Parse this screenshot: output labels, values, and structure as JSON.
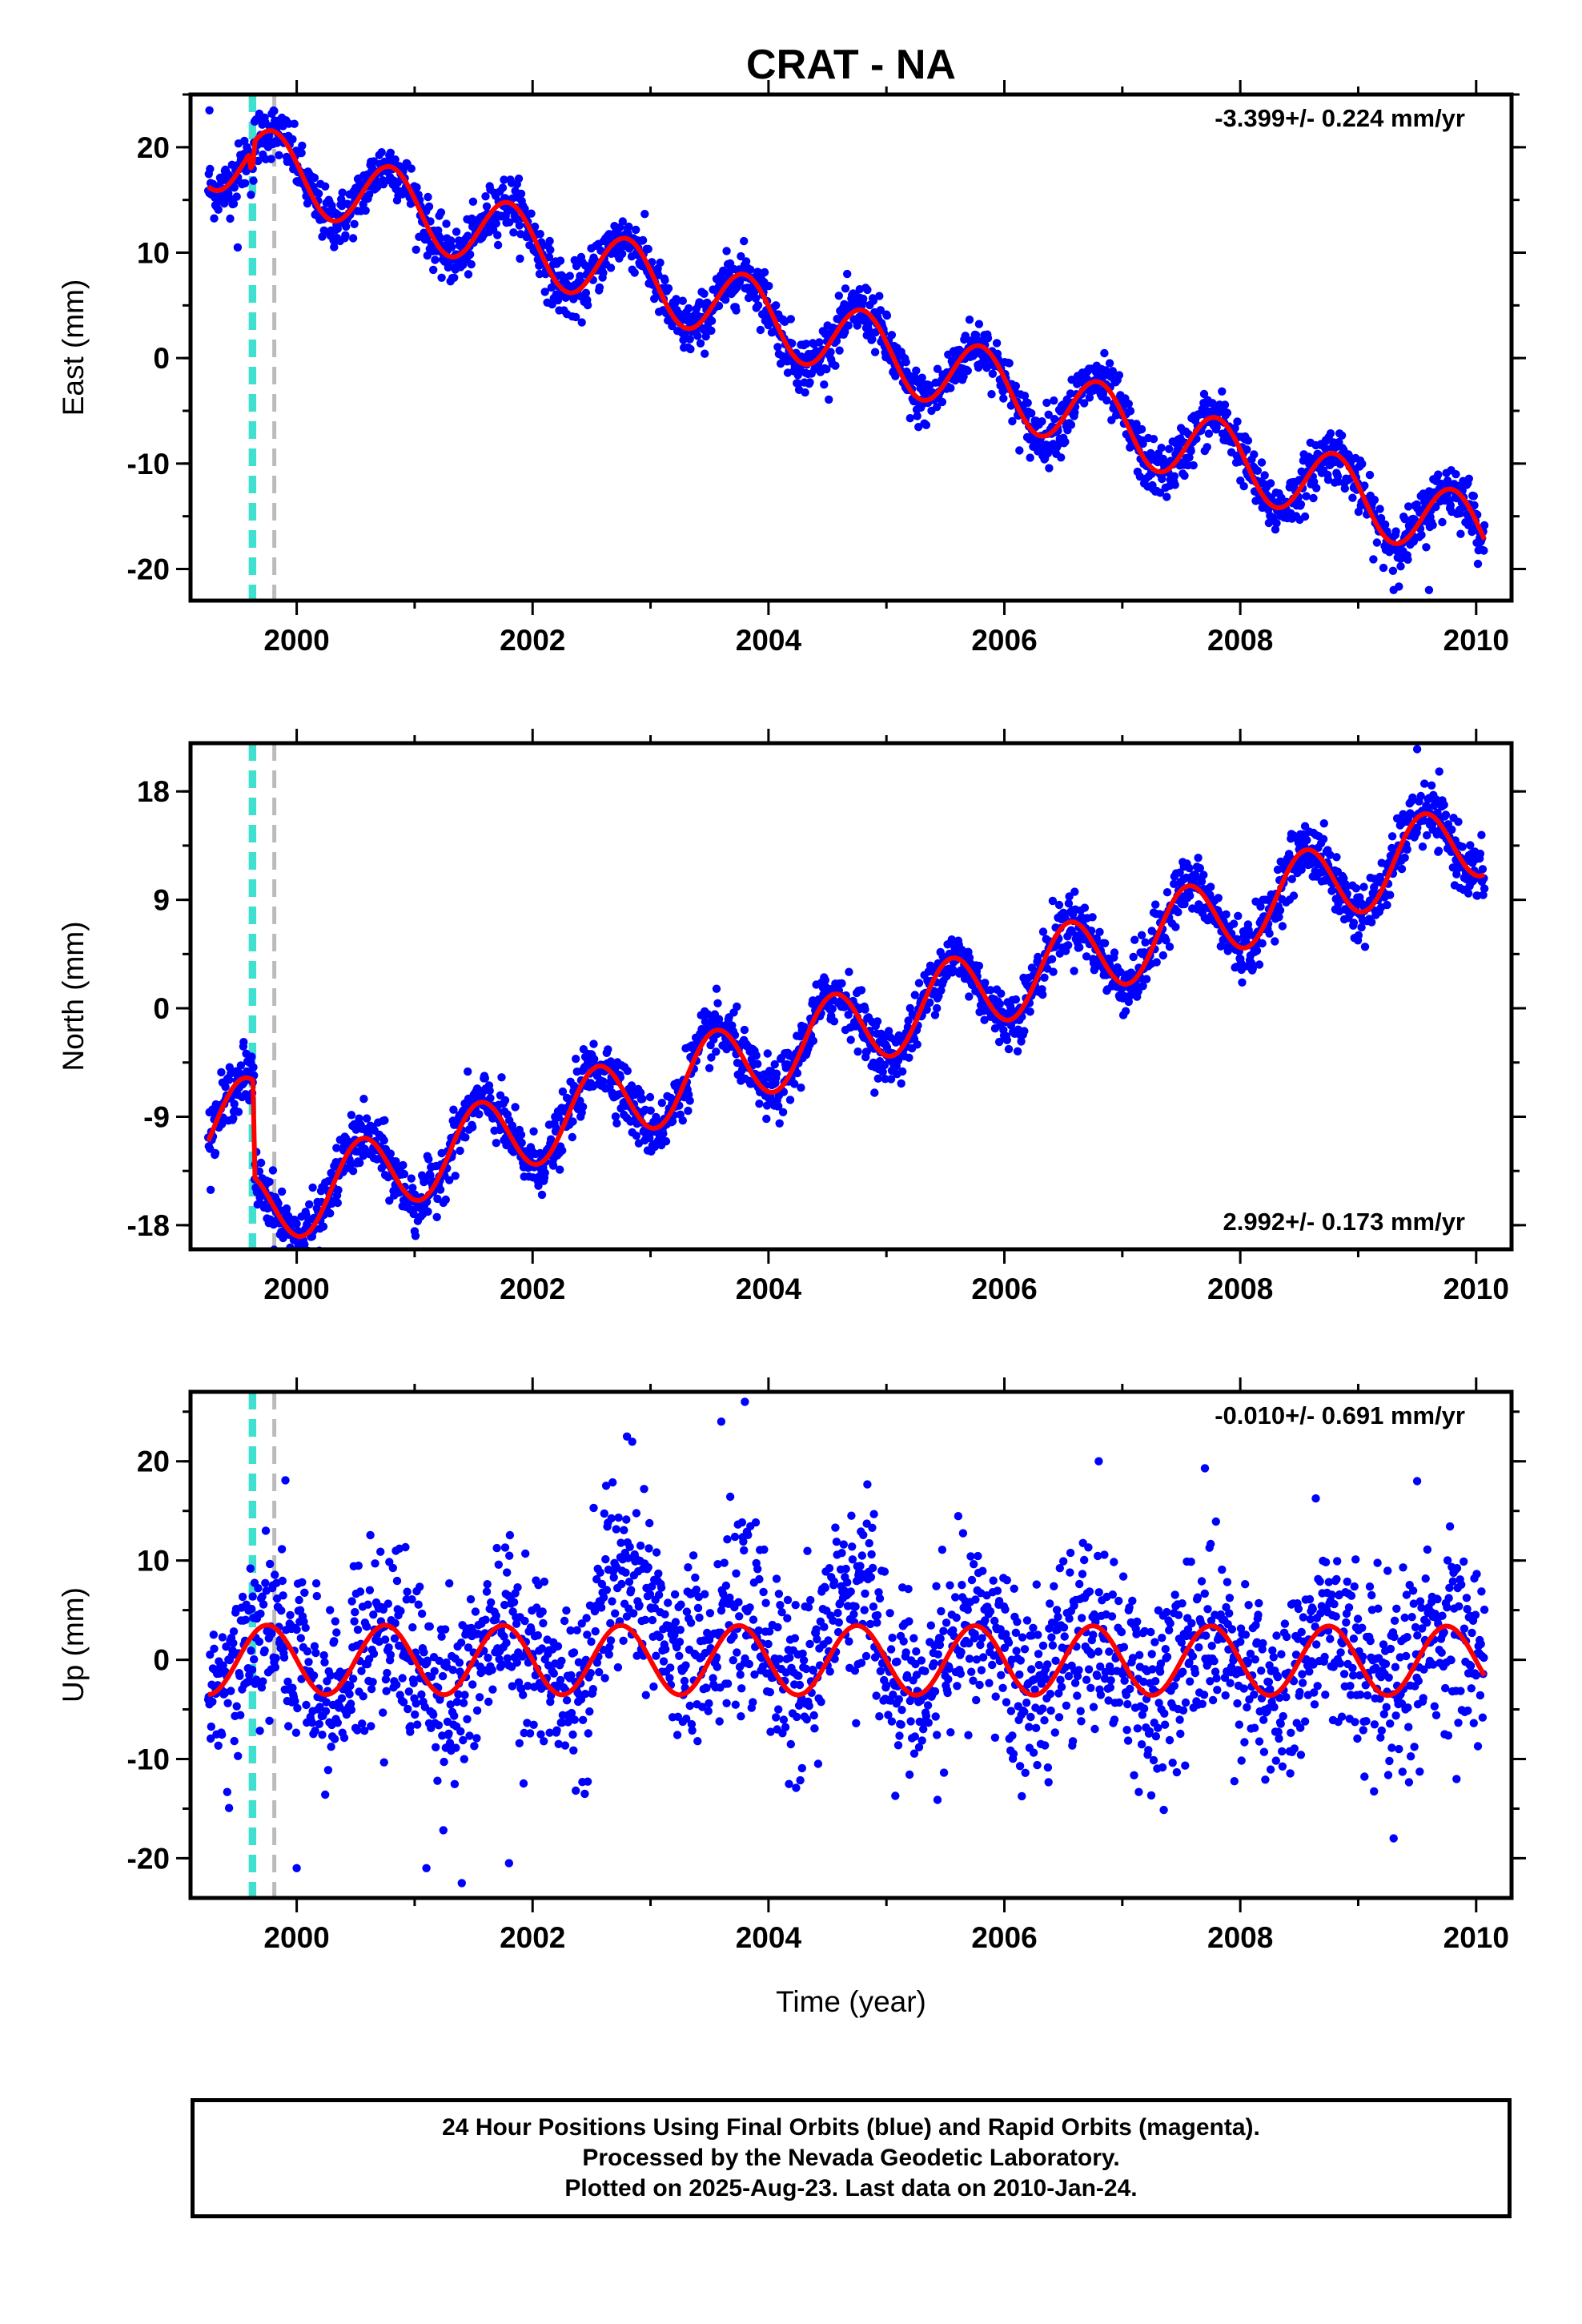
{
  "chart_data": {
    "title": "CRAT - NA",
    "xlabel": "Time (year)",
    "x_ticks": [
      2000,
      2002,
      2004,
      2006,
      2008,
      2010
    ],
    "xlim": [
      1999.1,
      2010.3
    ],
    "data_range": [
      1999.25,
      2010.07
    ],
    "equipment_lines": [
      {
        "kind": "cyan",
        "x": 1999.61,
        "color": "#40e0d0"
      },
      {
        "kind": "cyan",
        "x": 1999.64,
        "color": "#40e0d0"
      },
      {
        "kind": "gray",
        "x": 1999.81,
        "color": "#bbbbbb"
      }
    ],
    "colors": {
      "points": "#0000ff",
      "model": "#ff0000",
      "frame": "#000000"
    },
    "panels": [
      {
        "component": "East",
        "type": "scatter",
        "ylabel": "East (mm)",
        "rate": "-3.399+/- 0.224 mm/yr",
        "rate_position": "top-right",
        "ylim": [
          -23,
          25
        ],
        "y_ticks": [
          -20,
          -10,
          0,
          10,
          20
        ],
        "trend": {
          "intercept_at_start": 19.5,
          "slope_mm_per_yr": -3.399
        },
        "seasonal": {
          "amplitude": 3.4,
          "peak_phase": 0.8
        },
        "offsets": [
          {
            "x": 1999.61,
            "dy": -1.5
          },
          {
            "x": 1999.64,
            "dy": 2.0
          }
        ],
        "noise": 1.3,
        "outliers": [
          [
            1999.26,
            23.5
          ],
          [
            1999.5,
            10.5
          ],
          [
            2009.3,
            -22
          ],
          [
            2009.6,
            -22
          ]
        ]
      },
      {
        "component": "North",
        "type": "scatter",
        "ylabel": "North (mm)",
        "rate": "2.992+/- 0.173 mm/yr",
        "rate_position": "bottom-right",
        "ylim": [
          -20,
          22
        ],
        "y_ticks": [
          -18,
          -9,
          0,
          9,
          18
        ],
        "trend": {
          "intercept_at_start": -10.0,
          "slope_mm_per_yr": 2.992
        },
        "seasonal": {
          "amplitude": 3.3,
          "peak_phase": 0.55
        },
        "offsets": [
          {
            "x": 1999.64,
            "dy": -8.0
          }
        ],
        "noise": 1.2,
        "outliers": [
          [
            2001.0,
            -18.5
          ],
          [
            2009.5,
            21.5
          ],
          [
            1999.55,
            -2.8
          ]
        ]
      },
      {
        "component": "Up",
        "type": "scatter",
        "ylabel": "Up (mm)",
        "rate": "-0.010+/- 0.691 mm/yr",
        "rate_position": "top-right",
        "ylim": [
          -24,
          27
        ],
        "y_ticks": [
          -20,
          -10,
          0,
          10,
          20
        ],
        "trend": {
          "intercept_at_start": 0.0,
          "slope_mm_per_yr": -0.01
        },
        "seasonal": {
          "amplitude": 3.5,
          "peak_phase": 0.75
        },
        "offsets": [],
        "noise": 4.5,
        "outliers": [
          [
            2003.8,
            26
          ],
          [
            2003.6,
            24
          ],
          [
            2002.8,
            22.5
          ],
          [
            2006.8,
            20
          ],
          [
            2007.7,
            19.3
          ],
          [
            2009.5,
            18
          ],
          [
            2001.1,
            -21
          ],
          [
            2001.4,
            -22.5
          ],
          [
            2000.0,
            -21
          ],
          [
            2009.3,
            -18
          ],
          [
            2001.8,
            -20.5
          ]
        ]
      }
    ]
  },
  "footer": {
    "line1": "24 Hour Positions Using Final Orbits (blue) and Rapid Orbits (magenta).",
    "line2": "Processed by the Nevada Geodetic Laboratory.",
    "line3": "Plotted on 2025-Aug-23. Last data on 2010-Jan-24."
  }
}
